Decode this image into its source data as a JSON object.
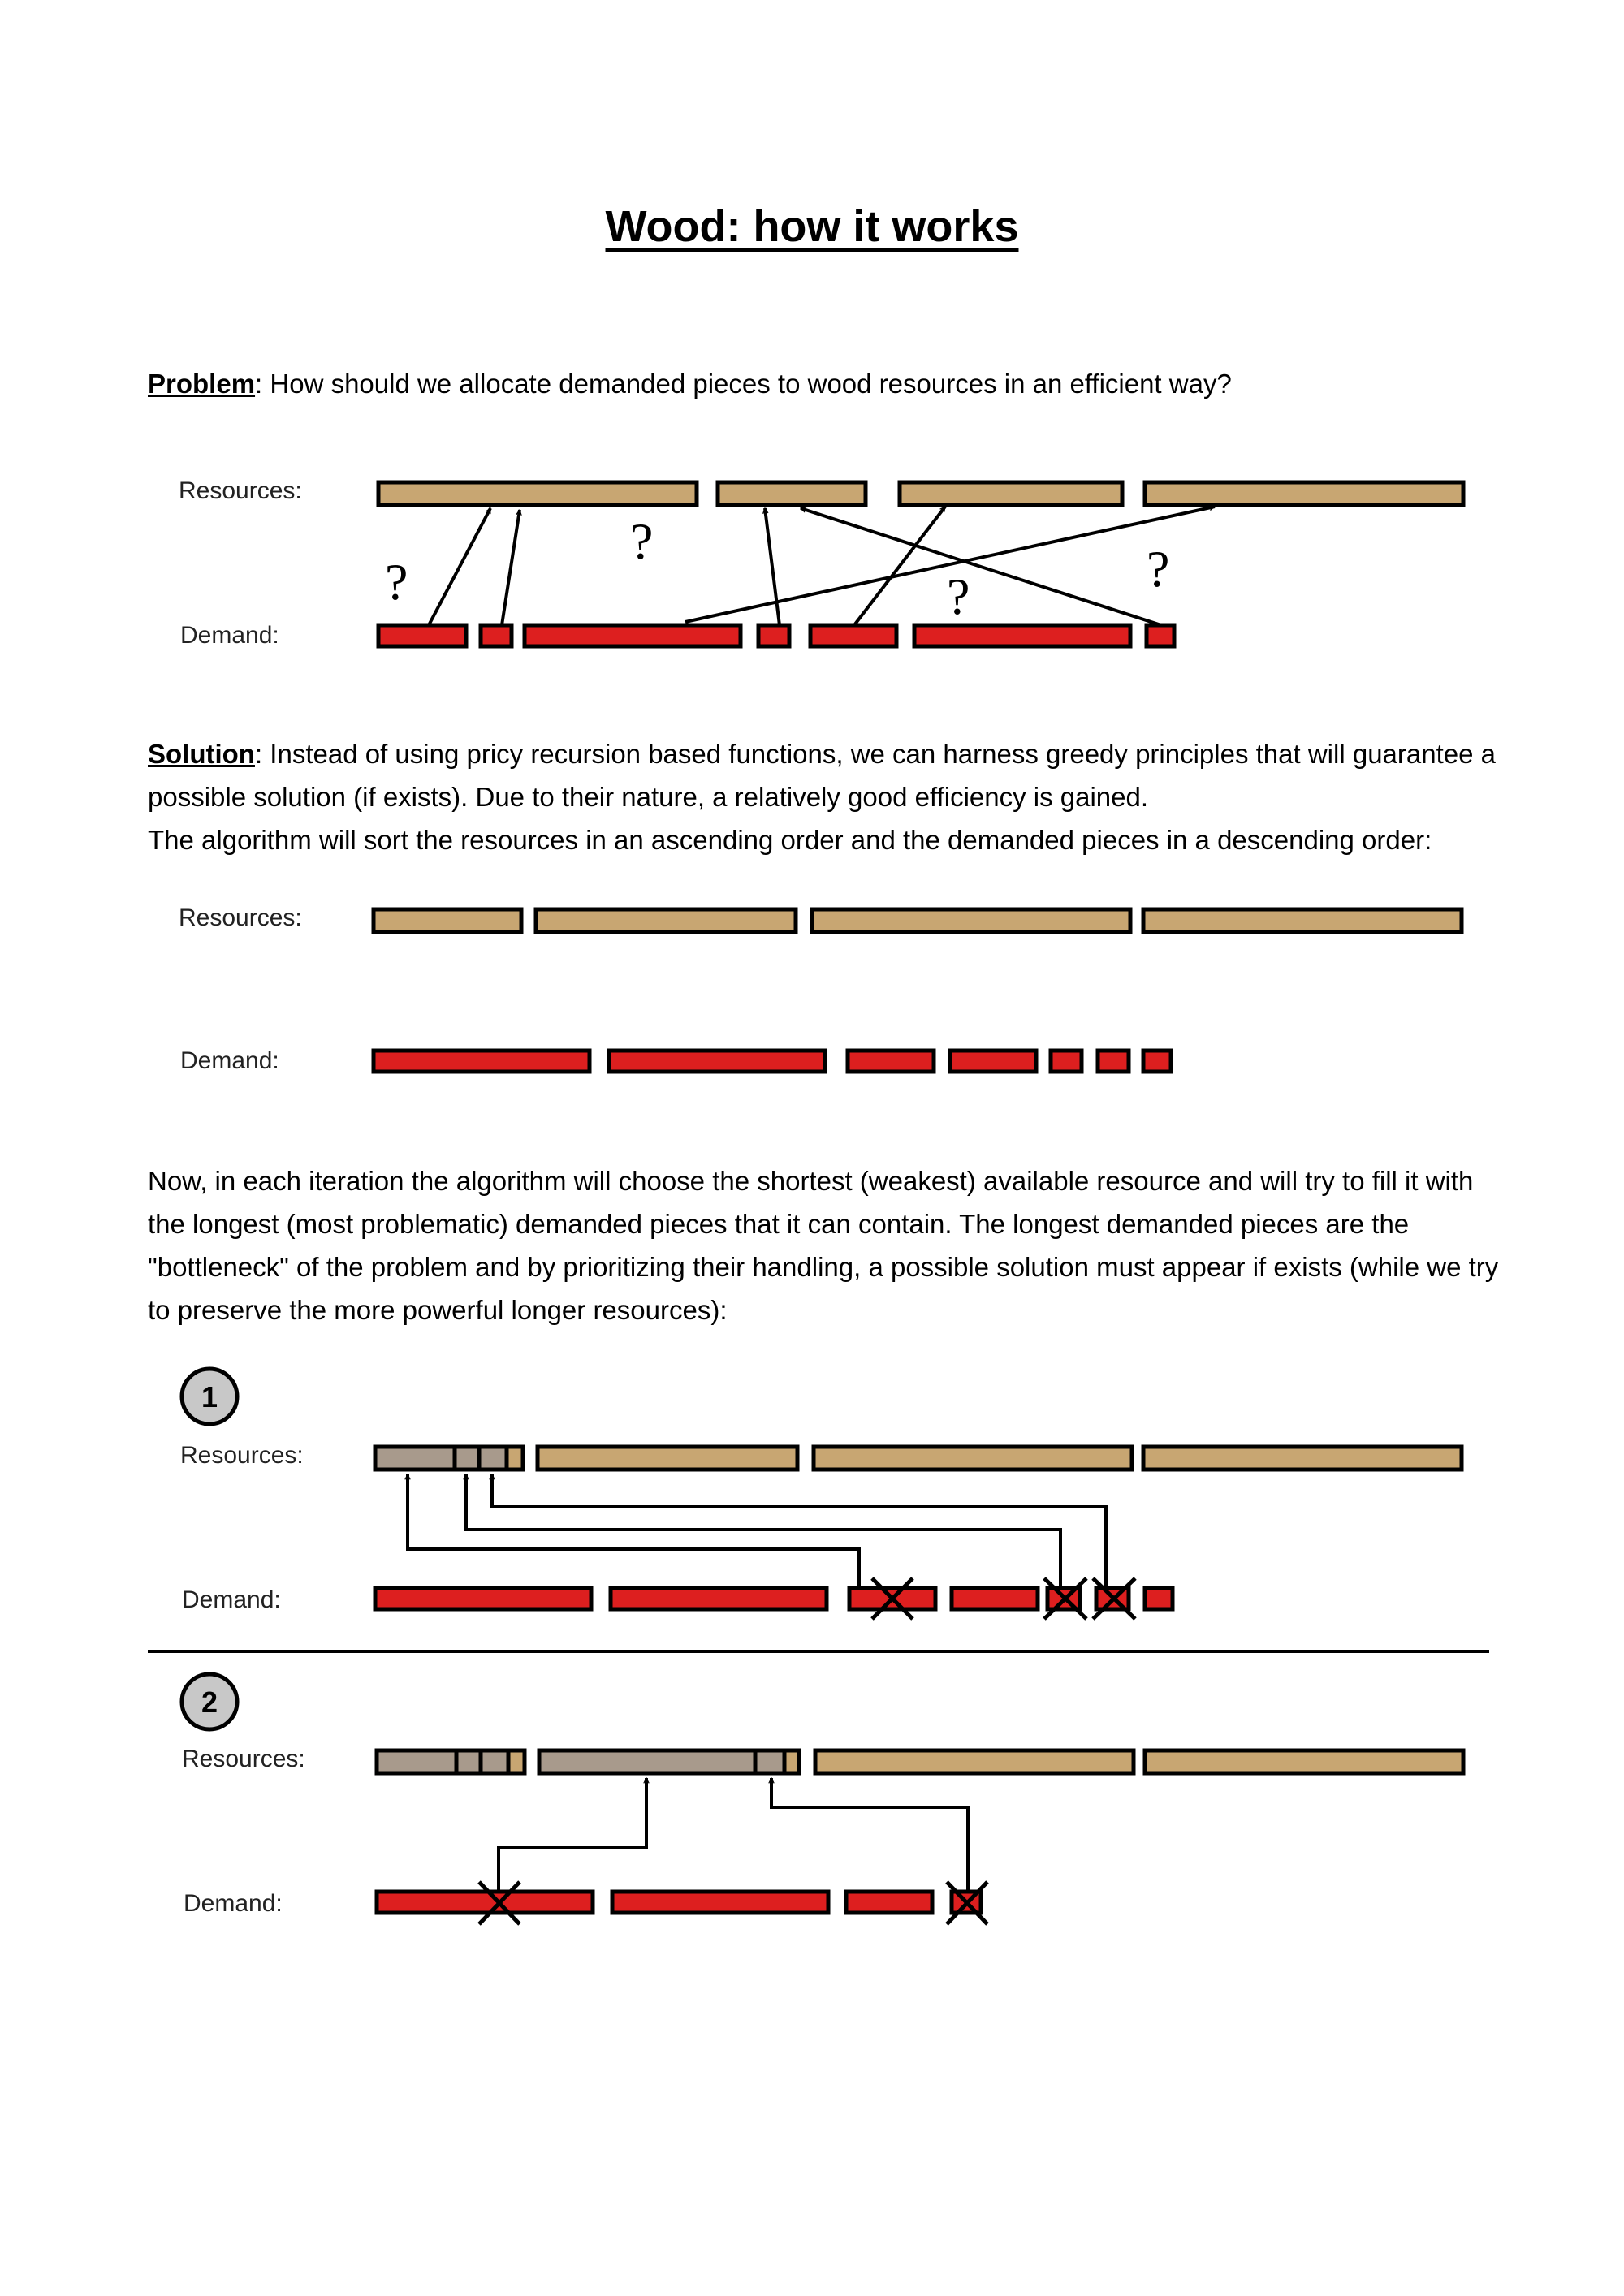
{
  "title": "Wood: how it works",
  "problem": {
    "lead": "Problem",
    "text": ": How should we allocate demanded pieces to wood resources in an efficient way?"
  },
  "solution": {
    "lead": "Solution",
    "text": ": Instead of using pricy recursion based functions, we can harness greedy principles that will guarantee a possible solution (if exists). Due to their nature, a relatively good efficiency is gained.",
    "text2": "The algorithm will sort the resources in an ascending order and the demanded pieces in a descending order:"
  },
  "iteration_text": "Now, in each iteration the algorithm will choose the shortest (weakest) available resource and will try to fill it with the longest (most problematic) demanded pieces that it can contain. The longest demanded pieces are the \"bottleneck\" of the problem and by prioritizing their handling, a possible solution must appear if exists (while we try to preserve the more powerful longer resources):",
  "labels": {
    "resources": "Resources:",
    "demand": "Demand:",
    "question": "?"
  },
  "steps": {
    "step1": "1",
    "step2": "2"
  },
  "colors": {
    "resource": "#c8a672",
    "used_resource": "#a89a8c",
    "demand": "#dd1f1f",
    "badge": "#c8c8c8"
  }
}
